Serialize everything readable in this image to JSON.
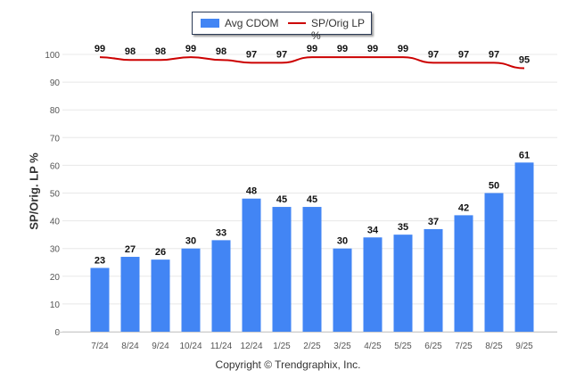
{
  "chart_data": {
    "type": "bar+line",
    "categories": [
      "7/24",
      "8/24",
      "9/24",
      "10/24",
      "11/24",
      "12/24",
      "1/25",
      "2/25",
      "3/25",
      "4/25",
      "5/25",
      "6/25",
      "7/25",
      "8/25",
      "9/25"
    ],
    "series": [
      {
        "name": "Avg CDOM",
        "type": "bar",
        "color": "#4285f4",
        "values": [
          23,
          27,
          26,
          30,
          33,
          48,
          45,
          45,
          30,
          34,
          35,
          37,
          42,
          50,
          61
        ]
      },
      {
        "name": "SP/Orig LP %",
        "type": "line",
        "color": "#cc0000",
        "values": [
          99,
          98,
          98,
          99,
          98,
          97,
          97,
          99,
          99,
          99,
          99,
          97,
          97,
          97,
          95
        ]
      }
    ],
    "ylabel": "SP/Orig. LP %",
    "ylim": [
      0,
      100
    ],
    "yticks": [
      0,
      10,
      20,
      30,
      40,
      50,
      60,
      70,
      80,
      90,
      100
    ],
    "legend": "top-center",
    "grid": true
  },
  "copyright": "Copyright © Trendgraphix, Inc."
}
